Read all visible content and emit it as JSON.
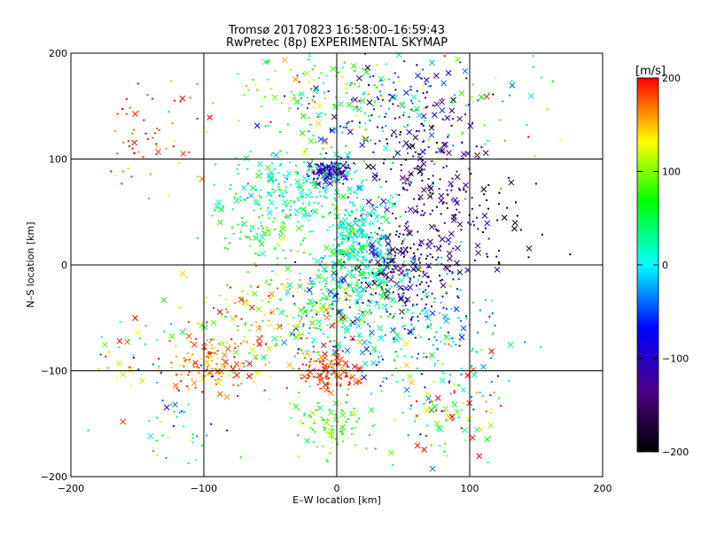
{
  "chart_data": {
    "type": "scatter",
    "title": "Tromsø 20170823 16:58:00–16:59:43",
    "subtitle": "RwPretec (8p) EXPERIMENTAL SKYMAP",
    "xlabel": "E–W location [km]",
    "ylabel": "N–S location [km]",
    "xlim": [
      -200,
      200
    ],
    "ylim": [
      -200,
      200
    ],
    "x_ticks": [
      -200,
      -100,
      0,
      100,
      200
    ],
    "y_ticks": [
      -200,
      -100,
      0,
      100,
      200
    ],
    "x_tick_labels": [
      "−200",
      "−100",
      "0",
      "100",
      "200"
    ],
    "y_tick_labels": [
      "−200",
      "−100",
      "0",
      "100",
      "200"
    ],
    "grid_lines_x": [
      -100,
      0,
      100
    ],
    "grid_lines_y": [
      -100,
      0,
      100
    ],
    "colorbar": {
      "label": "[m/s]",
      "range": [
        -200,
        200
      ],
      "ticks": [
        200,
        100,
        0,
        -100,
        -200
      ],
      "tick_labels": [
        "200",
        "100",
        "0",
        "−100",
        "−200"
      ],
      "colors": [
        "#000000",
        "#4b0082",
        "#0000ff",
        "#00ffff",
        "#00ff00",
        "#ffff00",
        "#ff0000"
      ]
    },
    "markers": [
      "dot",
      "cross"
    ],
    "clusters": [
      {
        "cx": -5,
        "cy": 88,
        "sx": 8,
        "sy": 6,
        "v": -100,
        "vs": 15,
        "n": 130
      },
      {
        "cx": -5,
        "cy": -100,
        "sx": 12,
        "sy": 10,
        "v": 185,
        "vs": 15,
        "n": 140
      },
      {
        "cx": -95,
        "cy": -95,
        "sx": 15,
        "sy": 12,
        "v": 170,
        "vs": 20,
        "n": 110
      },
      {
        "cx": -140,
        "cy": 120,
        "sx": 20,
        "sy": 25,
        "v": 180,
        "vs": 20,
        "n": 60
      },
      {
        "cx": -30,
        "cy": 70,
        "sx": 30,
        "sy": 20,
        "v": 30,
        "vs": 30,
        "n": 260
      },
      {
        "cx": -60,
        "cy": 30,
        "sx": 15,
        "sy": 15,
        "v": 60,
        "vs": 30,
        "n": 60
      },
      {
        "cx": 15,
        "cy": 20,
        "sx": 15,
        "sy": 25,
        "v": 20,
        "vs": 30,
        "n": 320
      },
      {
        "cx": 50,
        "cy": 0,
        "sx": 20,
        "sy": 20,
        "v": -150,
        "vs": 40,
        "n": 160
      },
      {
        "cx": 70,
        "cy": 60,
        "sx": 25,
        "sy": 40,
        "v": -130,
        "vs": 30,
        "n": 220
      },
      {
        "cx": 40,
        "cy": 140,
        "sx": 30,
        "sy": 30,
        "v": -80,
        "vs": 80,
        "n": 170
      },
      {
        "cx": -10,
        "cy": 160,
        "sx": 35,
        "sy": 25,
        "v": 80,
        "vs": 60,
        "n": 160
      },
      {
        "cx": 0,
        "cy": -30,
        "sx": 30,
        "sy": 25,
        "v": 30,
        "vs": 60,
        "n": 300
      },
      {
        "cx": 60,
        "cy": -60,
        "sx": 35,
        "sy": 30,
        "v": -20,
        "vs": 40,
        "n": 220
      },
      {
        "cx": 80,
        "cy": -130,
        "sx": 25,
        "sy": 35,
        "v": 100,
        "vs": 90,
        "n": 120
      },
      {
        "cx": -5,
        "cy": -150,
        "sx": 15,
        "sy": 12,
        "v": 80,
        "vs": 30,
        "n": 90
      },
      {
        "cx": -60,
        "cy": -60,
        "sx": 30,
        "sy": 30,
        "v": 140,
        "vs": 50,
        "n": 160
      },
      {
        "cx": -120,
        "cy": -150,
        "sx": 20,
        "sy": 25,
        "v": 20,
        "vs": 60,
        "n": 40
      },
      {
        "cx": 120,
        "cy": 40,
        "sx": 15,
        "sy": 30,
        "v": -190,
        "vs": 15,
        "n": 30
      },
      {
        "cx": -150,
        "cy": -80,
        "sx": 20,
        "sy": 20,
        "v": 80,
        "vs": 100,
        "n": 40
      },
      {
        "cx": 100,
        "cy": 150,
        "sx": 30,
        "sy": 30,
        "v": 60,
        "vs": 90,
        "n": 50
      }
    ]
  }
}
